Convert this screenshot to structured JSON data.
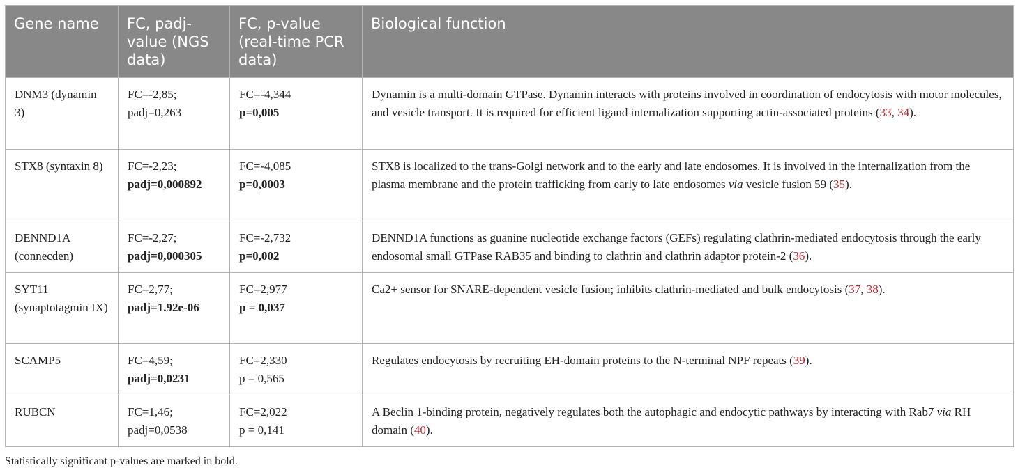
{
  "table": {
    "headers": [
      "Gene name",
      "FC, padj-value (NGS data)",
      "FC, p-value (real-time PCR data)",
      "Biological function"
    ],
    "rows": [
      {
        "gene": "DNM3 (dynamin 3)",
        "ngs_fc": "FC=-2,85;",
        "ngs_p": "padj=0,263",
        "pcr_fc": "FC=-4,344",
        "pcr_p": "p=0,005",
        "function_text": "Dynamin is a multi-domain GTPase. Dynamin interacts with proteins involved in coordination of endocytosis with motor molecules, and vesicle transport. It is required for efficient ligand internalization supporting actin-associated proteins (",
        "ref1": "33",
        "sep": ", ",
        "ref2": "34",
        "function_end": ")."
      },
      {
        "gene": "STX8 (syntaxin 8)",
        "ngs_fc": "FC=-2,23;",
        "ngs_p": "padj=0,000892",
        "pcr_fc": "FC=-4,085",
        "pcr_p": "p=0,0003",
        "function_text": "STX8 is localized to the trans-Golgi network and to the early and late endosomes. It is involved in the internalization from the plasma membrane and the protein trafficking from early to late endosomes ",
        "function_italic": "via",
        "function_text2": " vesicle fusion 59 (",
        "ref1": "35",
        "function_end": ")."
      },
      {
        "gene": "DENND1A (connecden)",
        "ngs_fc": "FC=-2,27;",
        "ngs_p": "padj=0,000305",
        "pcr_fc": "FC=-2,732",
        "pcr_p": "p=0,002",
        "function_text": "DENND1A functions as guanine nucleotide exchange factors (GEFs) regulating clathrin-mediated endocytosis through the early endosomal small GTPase RAB35 and binding to clathrin and clathrin adaptor protein-2 (",
        "ref1": "36",
        "function_end": ")."
      },
      {
        "gene": "SYT11 (synaptotagmin IX)",
        "ngs_fc": "FC=2,77;",
        "ngs_p": "padj=1.92e-06",
        "pcr_fc": "FC=2,977",
        "pcr_p": "p = 0,037",
        "function_text": "Ca2+ sensor for SNARE-dependent vesicle fusion; inhibits clathrin-mediated and bulk endocytosis (",
        "ref1": "37",
        "sep": ", ",
        "ref2": "38",
        "function_end": ")."
      },
      {
        "gene": "SCAMP5",
        "ngs_fc": "FC=4,59;",
        "ngs_p": "padj=0,0231",
        "pcr_fc": "FC=2,330",
        "pcr_p": "p = 0,565",
        "function_text": "Regulates endocytosis by recruiting EH-domain proteins to the N-terminal NPF repeats (",
        "ref1": "39",
        "function_end": ")."
      },
      {
        "gene": "RUBCN",
        "ngs_fc": "FC=1,46;",
        "ngs_p": "padj=0,0538",
        "pcr_fc": "FC=2,022",
        "pcr_p": "p = 0,141",
        "function_text": "A Beclin 1-binding protein, negatively regulates both the autophagic and endocytic pathways by interacting with Rab7 ",
        "function_italic": "via",
        "function_text2": " RH domain (",
        "ref1": "40",
        "function_end": ")."
      }
    ]
  },
  "footnote": "Statistically significant p-values are marked in bold."
}
